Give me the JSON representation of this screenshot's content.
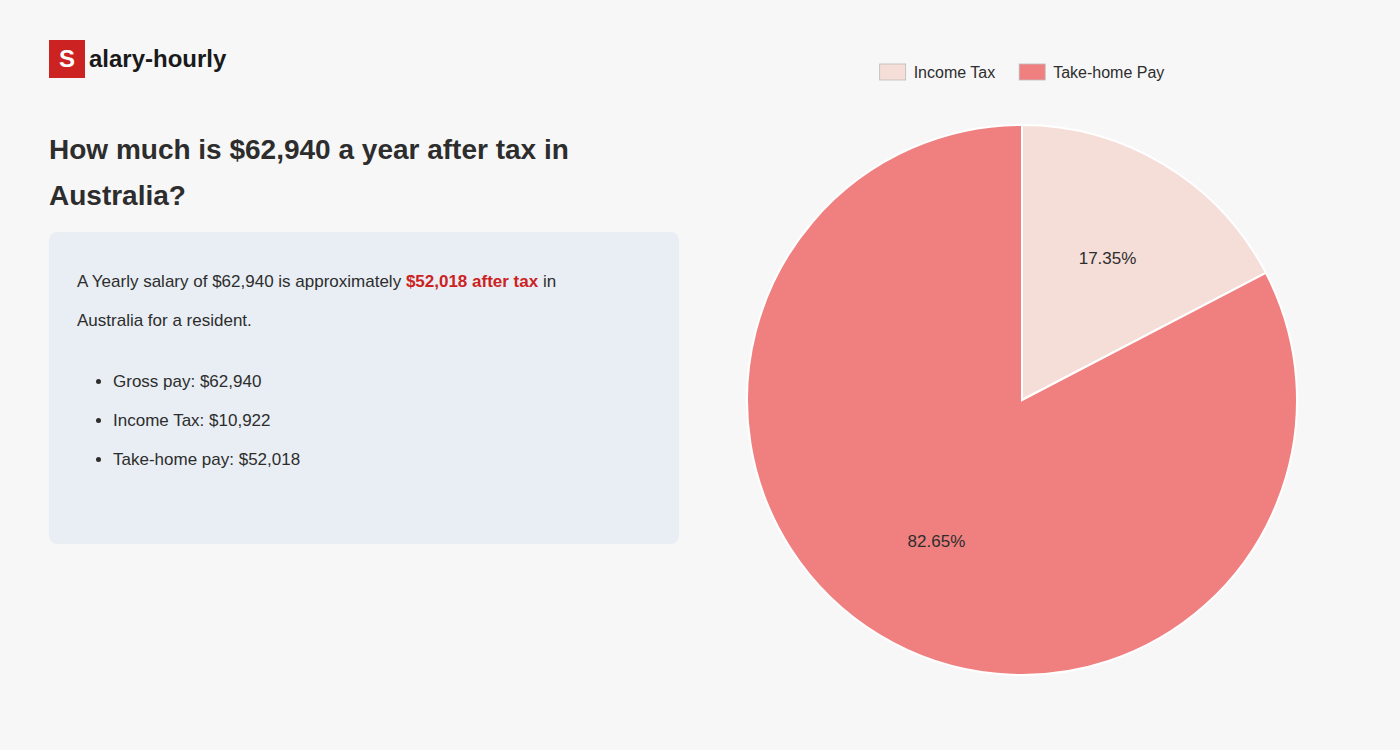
{
  "chart_data": {
    "type": "pie",
    "logo": {
      "text": [
        "S",
        "alary-hourly"
      ],
      "color": "#cc2222"
    },
    "title": [
      "How much is $62,940 a year after tax in",
      "Australia?"
    ],
    "title_color": "#2d2d2d",
    "paragraph": [
      [
        {
          "text": "A Yearly salary of $62,940 is approximately "
        },
        {
          "text": "$52,018 after tax",
          "color": "#cc2222"
        },
        {
          "text": " in"
        }
      ],
      [
        {
          "text": "Australia for a resident."
        }
      ]
    ],
    "bullets": [
      "Gross pay: $62,940",
      "Income Tax: $10,922",
      "Take-home pay: $52,018"
    ],
    "categories": [
      "Income Tax",
      "Take-home Pay"
    ],
    "values": [
      17.35,
      82.65
    ],
    "value_labels": [
      "17.35%",
      "82.65%"
    ],
    "colors": [
      "#f5ddd8",
      "#f08080"
    ],
    "data_labels": true,
    "legend": "top"
  }
}
